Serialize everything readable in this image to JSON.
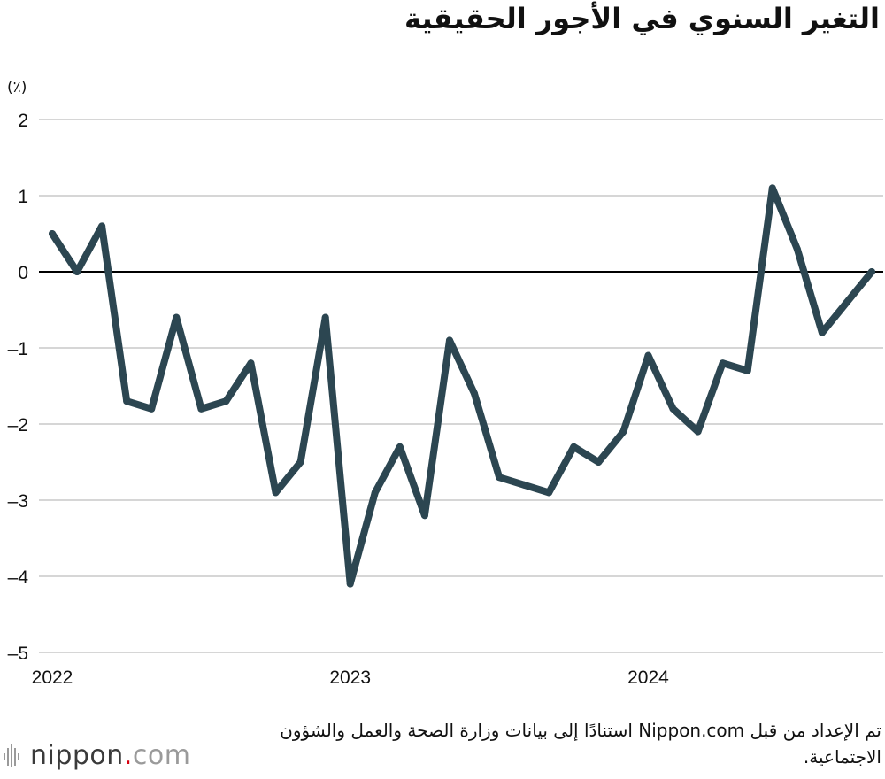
{
  "title": "التغير السنوي في الأجور الحقيقية",
  "source_text": "تم الإعداد من قبل Nippon.com استنادًا إلى بيانات وزارة الصحة والعمل والشؤون الاجتماعية.",
  "logo": {
    "name": "nippon",
    "dot": ".",
    "tld": "com",
    "accent": "#d7000f"
  },
  "colors": {
    "line": "#2c4651",
    "grid": "#c8c8c8",
    "zero": "#000000"
  },
  "chart_data": {
    "type": "line",
    "title": "التغير السنوي في الأجور الحقيقية",
    "ylabel": "(٪)",
    "xlabel": "",
    "ylim": [
      -5,
      2
    ],
    "yticks": [
      2,
      1,
      0,
      -1,
      -2,
      -3,
      -4,
      -5
    ],
    "ytick_labels": [
      "2",
      "1",
      "0",
      "–1",
      "–2",
      "–3",
      "–4",
      "–5"
    ],
    "xtick_labels": [
      "2022",
      "2023",
      "2024"
    ],
    "grid": true,
    "series": [
      {
        "values": [
          0.5,
          0.0,
          0.6,
          -1.7,
          -1.8,
          -0.6,
          -1.8,
          -1.7,
          -1.2,
          -2.9,
          -2.5,
          -0.6,
          -4.1,
          -2.9,
          -2.3,
          -3.2,
          -0.9,
          -1.6,
          -2.7,
          -2.8,
          -2.9,
          -2.3,
          -2.5,
          -2.1,
          -1.1,
          -1.8,
          -2.1,
          -1.2,
          -1.3,
          1.1,
          0.3,
          -0.8,
          -0.4,
          0.0
        ]
      }
    ]
  }
}
